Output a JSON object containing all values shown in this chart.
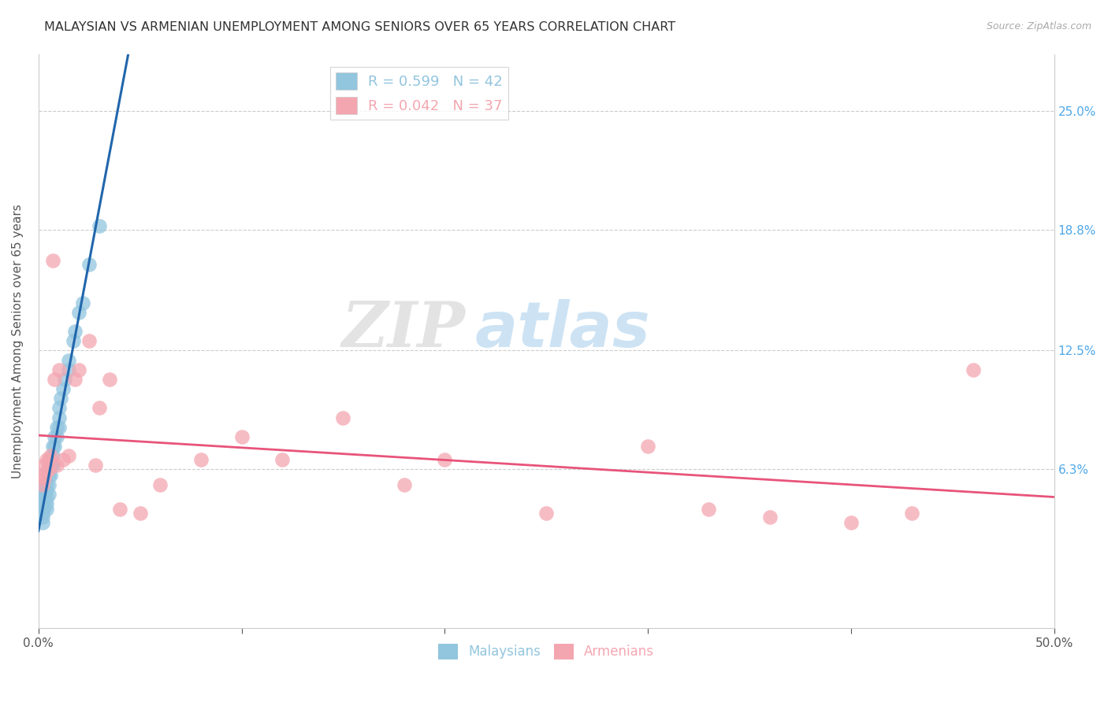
{
  "title": "MALAYSIAN VS ARMENIAN UNEMPLOYMENT AMONG SENIORS OVER 65 YEARS CORRELATION CHART",
  "source": "Source: ZipAtlas.com",
  "ylabel": "Unemployment Among Seniors over 65 years",
  "xlim": [
    0.0,
    0.5
  ],
  "ylim": [
    -0.02,
    0.28
  ],
  "x_ticks": [
    0.0,
    0.1,
    0.2,
    0.3,
    0.4,
    0.5
  ],
  "x_tick_labels": [
    "0.0%",
    "",
    "",
    "",
    "",
    "50.0%"
  ],
  "y_ticks": [
    0.063,
    0.125,
    0.188,
    0.25
  ],
  "y_tick_labels": [
    "6.3%",
    "12.5%",
    "18.8%",
    "25.0%"
  ],
  "malaysian_R": 0.599,
  "malaysian_N": 42,
  "armenian_R": 0.042,
  "armenian_N": 37,
  "malaysian_color": "#92c5de",
  "armenian_color": "#f4a6b0",
  "trendline_malaysian_color": "#2166ac",
  "trendline_armenian_color": "#e8547a",
  "background_color": "#ffffff",
  "grid_color": "#cccccc",
  "watermark_zip": "ZIP",
  "watermark_atlas": "atlas",
  "malaysian_x": [
    0.002,
    0.002,
    0.002,
    0.002,
    0.002,
    0.003,
    0.003,
    0.003,
    0.003,
    0.004,
    0.004,
    0.004,
    0.004,
    0.004,
    0.005,
    0.005,
    0.005,
    0.005,
    0.006,
    0.006,
    0.006,
    0.007,
    0.007,
    0.007,
    0.008,
    0.008,
    0.009,
    0.009,
    0.01,
    0.01,
    0.01,
    0.011,
    0.012,
    0.013,
    0.015,
    0.015,
    0.017,
    0.018,
    0.02,
    0.022,
    0.025,
    0.03
  ],
  "malaysian_y": [
    0.05,
    0.045,
    0.04,
    0.038,
    0.035,
    0.055,
    0.05,
    0.048,
    0.043,
    0.055,
    0.052,
    0.048,
    0.045,
    0.042,
    0.065,
    0.06,
    0.055,
    0.05,
    0.068,
    0.065,
    0.06,
    0.075,
    0.07,
    0.065,
    0.08,
    0.075,
    0.085,
    0.08,
    0.095,
    0.09,
    0.085,
    0.1,
    0.105,
    0.11,
    0.12,
    0.115,
    0.13,
    0.135,
    0.145,
    0.15,
    0.17,
    0.19
  ],
  "armenian_x": [
    0.002,
    0.002,
    0.003,
    0.003,
    0.004,
    0.004,
    0.005,
    0.005,
    0.006,
    0.007,
    0.008,
    0.009,
    0.01,
    0.012,
    0.015,
    0.018,
    0.02,
    0.025,
    0.028,
    0.03,
    0.035,
    0.04,
    0.05,
    0.06,
    0.08,
    0.1,
    0.12,
    0.15,
    0.18,
    0.2,
    0.25,
    0.3,
    0.33,
    0.36,
    0.4,
    0.43,
    0.46
  ],
  "armenian_y": [
    0.06,
    0.055,
    0.065,
    0.058,
    0.068,
    0.062,
    0.068,
    0.063,
    0.07,
    0.172,
    0.11,
    0.065,
    0.115,
    0.068,
    0.07,
    0.11,
    0.115,
    0.13,
    0.065,
    0.095,
    0.11,
    0.042,
    0.04,
    0.055,
    0.068,
    0.08,
    0.068,
    0.09,
    0.055,
    0.068,
    0.04,
    0.075,
    0.042,
    0.038,
    0.035,
    0.04,
    0.115
  ]
}
